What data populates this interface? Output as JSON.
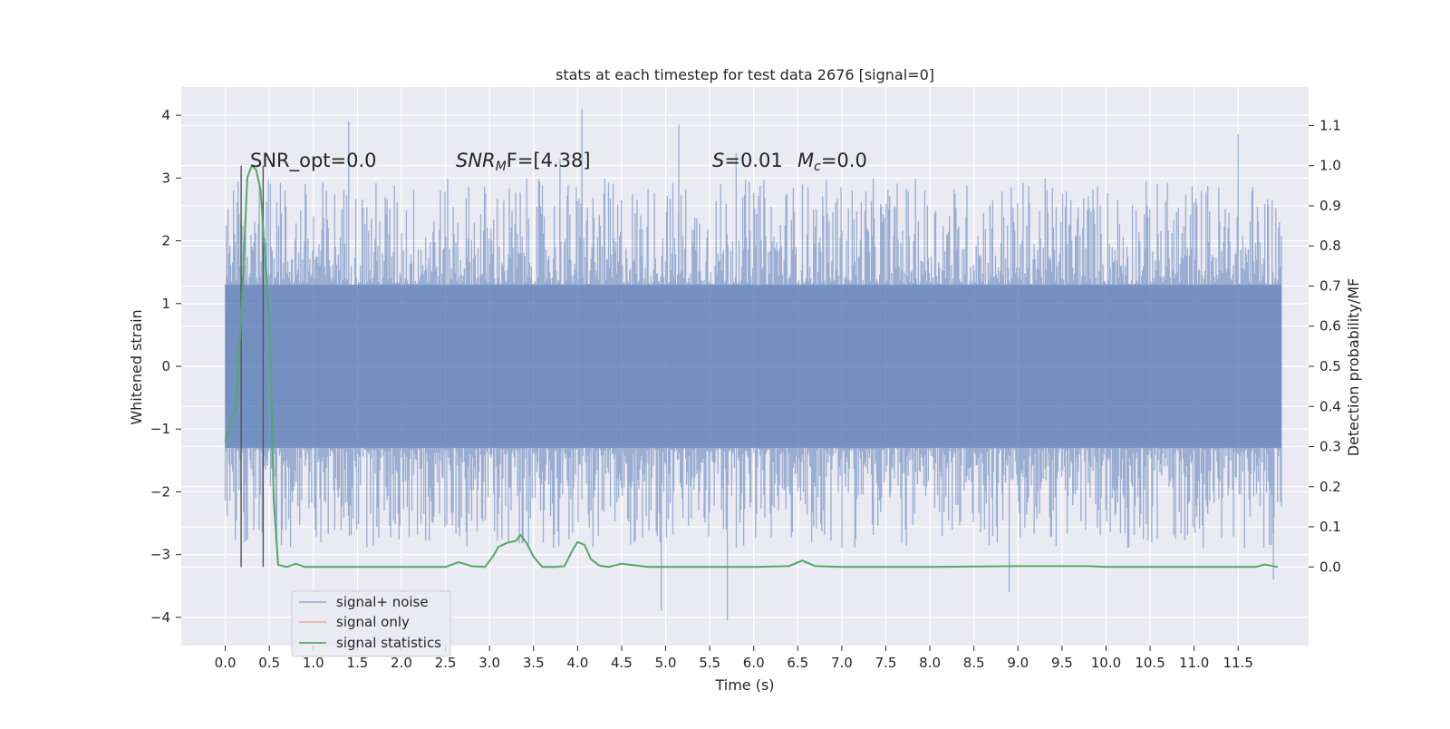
{
  "chart_data": {
    "type": "line",
    "title": "stats at each timestep for test data 2676 [signal=0]",
    "xlabel": "Time (s)",
    "ylabel": "Whitened strain",
    "y2label": "Detection probability/MF",
    "xlim": [
      -0.5,
      12.3
    ],
    "ylim": [
      -4.45,
      4.45
    ],
    "y2lim": [
      -0.196,
      1.196
    ],
    "x_ticks": [
      "0.0",
      "0.5",
      "1.0",
      "1.5",
      "2.0",
      "2.5",
      "3.0",
      "3.5",
      "4.0",
      "4.5",
      "5.0",
      "5.5",
      "6.0",
      "6.5",
      "7.0",
      "7.5",
      "8.0",
      "8.5",
      "9.0",
      "9.5",
      "10.0",
      "10.5",
      "11.0",
      "11.5"
    ],
    "y_ticks": [
      "4",
      "3",
      "2",
      "1",
      "0",
      "−1",
      "−2",
      "−3",
      "−4"
    ],
    "y2_ticks": [
      "1.1",
      "1.0",
      "0.9",
      "0.8",
      "0.7",
      "0.6",
      "0.5",
      "0.4",
      "0.3",
      "0.2",
      "0.1",
      "0.0"
    ],
    "grid": true,
    "legend_position": "lower-left",
    "annotations": {
      "snr_opt": "SNR_opt=0.0",
      "snr_mf_main": "SNR",
      "snr_mf_sub": "M",
      "snr_mf_rest": "F=[4.38]",
      "s_main": "S",
      "s_rest": "=0.01",
      "mc_main": "M",
      "mc_sub": "c",
      "mc_rest": "=0.0"
    },
    "vlines_x": [
      0.18,
      0.43
    ],
    "series": [
      {
        "name": "signal+ noise",
        "color": "#4c72b0",
        "axis": "left",
        "x_range": [
          0.0,
          11.99
        ],
        "envelope_low": -1.3,
        "envelope_high": 1.3,
        "spike_peaks": [
          [
            1.4,
            3.9
          ],
          [
            4.05,
            4.1
          ],
          [
            5.15,
            3.85
          ],
          [
            11.5,
            3.7
          ],
          [
            3.8,
            3.3
          ],
          [
            5.8,
            3.4
          ],
          [
            4.95,
            -3.9
          ],
          [
            5.7,
            -4.05
          ],
          [
            8.9,
            -3.6
          ],
          [
            11.9,
            -3.4
          ]
        ]
      },
      {
        "name": "signal only",
        "color": "#dd8452",
        "axis": "left",
        "x": [],
        "y": []
      },
      {
        "name": "signal statistics",
        "color": "#55a868",
        "axis": "right",
        "x": [
          0.0,
          0.05,
          0.12,
          0.18,
          0.25,
          0.3,
          0.35,
          0.4,
          0.45,
          0.5,
          0.55,
          0.6,
          0.7,
          0.8,
          0.9,
          1.0,
          1.5,
          2.0,
          2.5,
          2.65,
          2.8,
          2.95,
          3.05,
          3.1,
          3.2,
          3.3,
          3.35,
          3.42,
          3.5,
          3.6,
          3.75,
          3.85,
          3.95,
          4.0,
          4.08,
          4.15,
          4.25,
          4.35,
          4.5,
          4.8,
          5.0,
          5.5,
          6.0,
          6.4,
          6.55,
          6.7,
          7.0,
          8.0,
          9.0,
          9.8,
          10.0,
          11.0,
          11.7,
          11.8,
          11.95
        ],
        "y": [
          0.31,
          0.36,
          0.39,
          0.62,
          0.97,
          1.0,
          0.99,
          0.94,
          0.78,
          0.62,
          0.17,
          0.005,
          0.0,
          0.008,
          0.0,
          0.0,
          0.0,
          0.0,
          0.0,
          0.012,
          0.002,
          0.0,
          0.03,
          0.05,
          0.06,
          0.065,
          0.08,
          0.06,
          0.025,
          0.0,
          0.0,
          0.002,
          0.045,
          0.062,
          0.055,
          0.02,
          0.003,
          0.0,
          0.008,
          0.0,
          0.0,
          0.0,
          0.0,
          0.002,
          0.016,
          0.002,
          0.0,
          0.0,
          0.002,
          0.002,
          0.0,
          0.0,
          0.0,
          0.006,
          0.0
        ]
      }
    ]
  }
}
